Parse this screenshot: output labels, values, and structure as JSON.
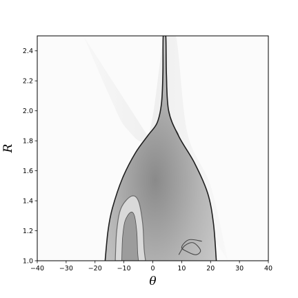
{
  "chart_data": {
    "type": "heatmap",
    "title": "",
    "xlabel": "θ",
    "ylabel": "R",
    "xlim": [
      -40,
      40
    ],
    "ylim": [
      1.0,
      2.5
    ],
    "x_ticks": [
      -40,
      -30,
      -20,
      -10,
      0,
      10,
      20,
      30,
      40
    ],
    "x_tick_labels": [
      "−40",
      "−30",
      "−20",
      "−10",
      "0",
      "10",
      "20",
      "30",
      "40"
    ],
    "y_ticks": [
      1.0,
      1.2,
      1.4,
      1.6,
      1.8,
      2.0,
      2.2,
      2.4
    ],
    "y_tick_labels": [
      "1.0",
      "1.2",
      "1.4",
      "1.6",
      "1.8",
      "2.0",
      "2.2",
      "2.4"
    ],
    "colormap": "grayscale",
    "grid": false,
    "legend": "none",
    "regions": {
      "separatrix": [
        [
          -16.5,
          1.0
        ],
        [
          -15.5,
          1.2
        ],
        [
          -14.0,
          1.35
        ],
        [
          -10.5,
          1.55
        ],
        [
          -6.0,
          1.72
        ],
        [
          -1.5,
          1.84
        ],
        [
          1.5,
          1.92
        ],
        [
          3.0,
          2.05
        ],
        [
          3.5,
          2.25
        ],
        [
          3.6,
          2.5
        ],
        [
          4.5,
          2.5
        ],
        [
          4.7,
          2.25
        ],
        [
          5.5,
          2.0
        ],
        [
          9.0,
          1.83
        ],
        [
          14.5,
          1.65
        ],
        [
          19.0,
          1.45
        ],
        [
          21.0,
          1.25
        ],
        [
          22.0,
          1.0
        ]
      ],
      "inner_loop": [
        [
          -13,
          1.0
        ],
        [
          -12.5,
          1.2
        ],
        [
          -11,
          1.35
        ],
        [
          -7.5,
          1.43
        ],
        [
          -5,
          1.4
        ],
        [
          -3.5,
          1.25
        ],
        [
          -3,
          1.08
        ],
        [
          -2.5,
          1.0
        ]
      ],
      "upper_band": [
        [
          -24,
          2.5
        ],
        [
          -15,
          2.1
        ],
        [
          -9,
          1.88
        ],
        [
          -1.5,
          1.84
        ],
        [
          4.0,
          2.5
        ],
        [
          8,
          2.5
        ],
        [
          12,
          1.85
        ],
        [
          20,
          1.5
        ],
        [
          26,
          1.0
        ]
      ]
    }
  }
}
